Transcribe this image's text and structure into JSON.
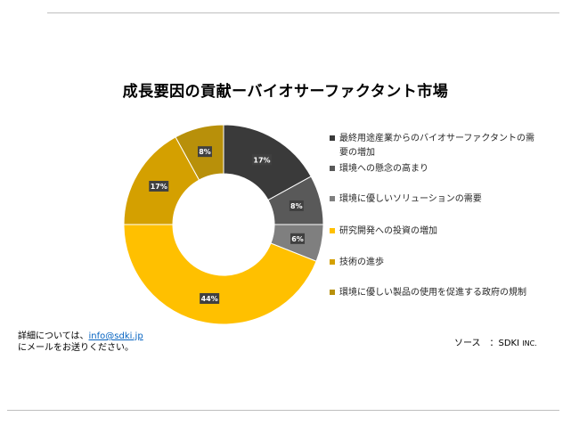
{
  "title": "成長要因の貢献ーバイオサーファクタント市場",
  "chart_data": {
    "type": "pie",
    "hole": "donut",
    "title": "成長要因の貢献ーバイオサーファクタント市場",
    "legend_position": "right",
    "slices": [
      {
        "name": "最終用途産業からのバイオサーファクタントの需要の増加",
        "value": 17,
        "label": "17%",
        "color": "#3a3a3a"
      },
      {
        "name": "環境への懸念の高まり",
        "value": 8,
        "label": "8%",
        "color": "#595959"
      },
      {
        "name": "環境に優しいソリューションの需要",
        "value": 6,
        "label": "6%",
        "color": "#7f7f7f"
      },
      {
        "name": "研究開発への投資の増加",
        "value": 44,
        "label": "44%",
        "color": "#ffc000"
      },
      {
        "name": "技術の進歩",
        "value": 17,
        "label": "17%",
        "color": "#d4a000"
      },
      {
        "name": "環境に優しい製品の使用を促進する政府の規制",
        "value": 8,
        "label": "8%",
        "color": "#b8900a"
      }
    ]
  },
  "contact": {
    "line1_prefix": "詳細については、",
    "email": "info@sdki.jp",
    "line2": "にメールをお送りください。"
  },
  "source": {
    "label": "ソース　：SDKI",
    "suffix": "INC."
  }
}
